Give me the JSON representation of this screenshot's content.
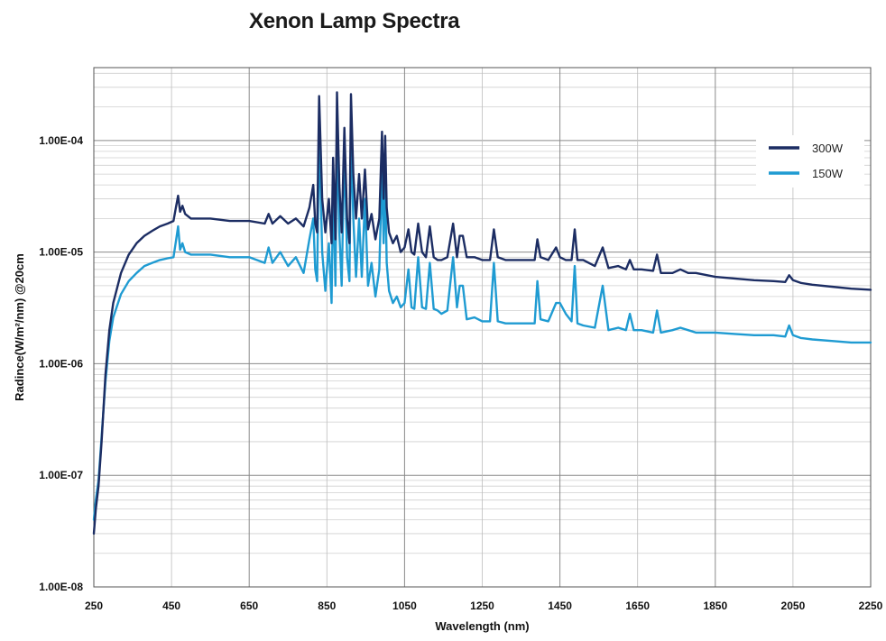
{
  "chart_data": {
    "type": "line",
    "title": "Xenon Lamp Spectra",
    "xlabel": "Wavelength (nm)",
    "ylabel": "Radince(W/m²/nm) @20cm",
    "xlim": [
      250,
      2250
    ],
    "ylim": [
      1e-08,
      0.00045
    ],
    "yscale": "log",
    "grid": true,
    "legend_position": "top-right",
    "x_ticks": [
      250,
      450,
      650,
      850,
      1050,
      1250,
      1450,
      1650,
      1850,
      2050,
      2250
    ],
    "x_tick_labels": [
      "250",
      "450",
      "650",
      "850",
      "1050",
      "1250",
      "1450",
      "1650",
      "1850",
      "2050",
      "2250"
    ],
    "y_ticks": [
      1e-08,
      1e-07,
      1e-06,
      1e-05,
      0.0001
    ],
    "y_tick_labels": [
      "1.00E-08",
      "1.00E-07",
      "1.00E-06",
      "1.00E-05",
      "1.00E-04"
    ],
    "series": [
      {
        "name": "300W",
        "color": "#1c2d63",
        "x": [
          250,
          255,
          262,
          270,
          280,
          290,
          300,
          320,
          340,
          360,
          380,
          400,
          420,
          440,
          455,
          462,
          467,
          472,
          478,
          485,
          500,
          550,
          600,
          650,
          690,
          700,
          710,
          730,
          750,
          770,
          790,
          805,
          815,
          820,
          825,
          830,
          838,
          846,
          855,
          862,
          866,
          872,
          876,
          882,
          888,
          895,
          902,
          908,
          912,
          918,
          925,
          933,
          940,
          948,
          956,
          965,
          975,
          985,
          992,
          996,
          1000,
          1004,
          1010,
          1020,
          1030,
          1040,
          1050,
          1060,
          1068,
          1075,
          1085,
          1095,
          1105,
          1115,
          1125,
          1135,
          1145,
          1160,
          1175,
          1185,
          1192,
          1200,
          1210,
          1230,
          1250,
          1270,
          1280,
          1290,
          1310,
          1330,
          1350,
          1370,
          1385,
          1392,
          1400,
          1420,
          1440,
          1450,
          1465,
          1480,
          1488,
          1495,
          1510,
          1540,
          1560,
          1575,
          1600,
          1620,
          1630,
          1640,
          1660,
          1690,
          1700,
          1710,
          1740,
          1760,
          1780,
          1800,
          1850,
          1900,
          1950,
          2000,
          2030,
          2040,
          2050,
          2070,
          2100,
          2150,
          2200,
          2250
        ],
        "y": [
          3e-08,
          5e-08,
          8e-08,
          2e-07,
          8e-07,
          2e-06,
          3.5e-06,
          6.5e-06,
          9.5e-06,
          1.2e-05,
          1.4e-05,
          1.55e-05,
          1.7e-05,
          1.8e-05,
          1.9e-05,
          2.6e-05,
          3.2e-05,
          2.3e-05,
          2.6e-05,
          2.2e-05,
          2e-05,
          2e-05,
          1.9e-05,
          1.9e-05,
          1.8e-05,
          2.2e-05,
          1.8e-05,
          2.1e-05,
          1.8e-05,
          2e-05,
          1.7e-05,
          2.5e-05,
          4e-05,
          1.8e-05,
          1.5e-05,
          0.00025,
          3e-05,
          1.5e-05,
          3e-05,
          1.2e-05,
          7e-05,
          1.3e-05,
          0.00027,
          4e-05,
          1.5e-05,
          0.00013,
          2e-05,
          1.2e-05,
          0.00026,
          5e-05,
          2e-05,
          5e-05,
          2e-05,
          5.5e-05,
          1.6e-05,
          2.2e-05,
          1.3e-05,
          2e-05,
          0.00012,
          3e-05,
          0.00011,
          2.5e-05,
          1.5e-05,
          1.2e-05,
          1.4e-05,
          1e-05,
          1.1e-05,
          1.6e-05,
          1e-05,
          9.5e-06,
          1.8e-05,
          1e-05,
          9e-06,
          1.7e-05,
          9e-06,
          8.5e-06,
          8.5e-06,
          9e-06,
          1.8e-05,
          9e-06,
          1.4e-05,
          1.4e-05,
          9e-06,
          9e-06,
          8.5e-06,
          8.5e-06,
          1.6e-05,
          9e-06,
          8.5e-06,
          8.5e-06,
          8.5e-06,
          8.5e-06,
          8.5e-06,
          1.3e-05,
          9e-06,
          8.5e-06,
          1.1e-05,
          9e-06,
          8.5e-06,
          8.5e-06,
          1.6e-05,
          8.5e-06,
          8.5e-06,
          7.5e-06,
          1.1e-05,
          7.2e-06,
          7.5e-06,
          7e-06,
          8.5e-06,
          7e-06,
          7e-06,
          6.8e-06,
          9.5e-06,
          6.5e-06,
          6.5e-06,
          7e-06,
          6.5e-06,
          6.5e-06,
          6e-06,
          5.8e-06,
          5.6e-06,
          5.5e-06,
          5.4e-06,
          6.2e-06,
          5.6e-06,
          5.3e-06,
          5.1e-06,
          4.9e-06,
          4.7e-06,
          4.6e-06
        ]
      },
      {
        "name": "150W",
        "color": "#1f9bd2",
        "x": [
          250,
          255,
          262,
          270,
          280,
          290,
          300,
          320,
          340,
          360,
          380,
          400,
          420,
          440,
          455,
          462,
          467,
          472,
          478,
          485,
          500,
          550,
          600,
          650,
          690,
          700,
          710,
          730,
          750,
          770,
          790,
          805,
          815,
          820,
          825,
          830,
          838,
          846,
          855,
          862,
          866,
          872,
          876,
          882,
          888,
          895,
          902,
          908,
          912,
          918,
          925,
          933,
          940,
          948,
          956,
          965,
          975,
          985,
          992,
          996,
          1000,
          1004,
          1010,
          1020,
          1030,
          1040,
          1050,
          1060,
          1068,
          1075,
          1085,
          1095,
          1105,
          1115,
          1125,
          1135,
          1145,
          1160,
          1175,
          1185,
          1192,
          1200,
          1210,
          1230,
          1250,
          1270,
          1280,
          1290,
          1310,
          1330,
          1350,
          1370,
          1385,
          1392,
          1400,
          1420,
          1440,
          1450,
          1465,
          1480,
          1488,
          1495,
          1510,
          1540,
          1560,
          1575,
          1600,
          1620,
          1630,
          1640,
          1660,
          1690,
          1700,
          1710,
          1740,
          1760,
          1780,
          1800,
          1850,
          1900,
          1950,
          2000,
          2030,
          2040,
          2050,
          2070,
          2100,
          2150,
          2200,
          2250
        ],
        "y": [
          4e-08,
          6e-08,
          9e-08,
          2.2e-07,
          7e-07,
          1.6e-06,
          2.6e-06,
          4.2e-06,
          5.5e-06,
          6.5e-06,
          7.5e-06,
          8e-06,
          8.5e-06,
          8.8e-06,
          9e-06,
          1.3e-05,
          1.7e-05,
          1.05e-05,
          1.2e-05,
          1e-05,
          9.5e-06,
          9.5e-06,
          9e-06,
          9e-06,
          8e-06,
          1.1e-05,
          8e-06,
          1e-05,
          7.5e-06,
          9e-06,
          6.5e-06,
          1.3e-05,
          2e-05,
          7e-06,
          5.5e-06,
          0.000125,
          1e-05,
          4.5e-06,
          1.2e-05,
          3.5e-06,
          4e-05,
          5e-06,
          0.000135,
          1.5e-05,
          5e-06,
          9e-05,
          9e-06,
          5.5e-06,
          0.00011,
          2e-05,
          6e-06,
          2e-05,
          6e-06,
          3e-05,
          5e-06,
          8e-06,
          4e-06,
          7e-06,
          5.5e-05,
          1.2e-05,
          5e-05,
          8e-06,
          4.5e-06,
          3.5e-06,
          4e-06,
          3.2e-06,
          3.5e-06,
          7e-06,
          3.2e-06,
          3.1e-06,
          9e-06,
          3.2e-06,
          3.1e-06,
          8e-06,
          3.1e-06,
          3e-06,
          2.8e-06,
          3e-06,
          9e-06,
          3.2e-06,
          5e-06,
          5e-06,
          2.5e-06,
          2.6e-06,
          2.4e-06,
          2.4e-06,
          8e-06,
          2.4e-06,
          2.3e-06,
          2.3e-06,
          2.3e-06,
          2.3e-06,
          2.3e-06,
          5.5e-06,
          2.5e-06,
          2.4e-06,
          3.5e-06,
          3.5e-06,
          2.8e-06,
          2.4e-06,
          7.5e-06,
          2.3e-06,
          2.2e-06,
          2.1e-06,
          5e-06,
          2e-06,
          2.1e-06,
          2e-06,
          2.8e-06,
          2e-06,
          2e-06,
          1.9e-06,
          3e-06,
          1.9e-06,
          2e-06,
          2.1e-06,
          2e-06,
          1.9e-06,
          1.9e-06,
          1.85e-06,
          1.8e-06,
          1.8e-06,
          1.75e-06,
          2.2e-06,
          1.8e-06,
          1.7e-06,
          1.65e-06,
          1.6e-06,
          1.55e-06,
          1.55e-06
        ]
      }
    ]
  }
}
